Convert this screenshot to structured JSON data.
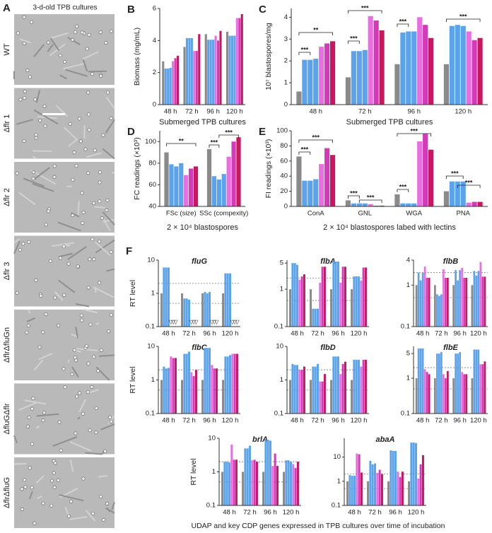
{
  "panel_a": {
    "letter": "A",
    "title": "3-d-old TPB cultures",
    "strains": [
      "WT",
      "Δflr 1",
      "Δflr 2",
      "Δflr 3",
      "ΔflrΔfluGn",
      "ΔfluGΔflr",
      "ΔflrΔfluG"
    ]
  },
  "caption": "UDAP and key CDP genes expressed in TPB cultures over time of incubation",
  "chart_data": [
    {
      "type": "bar",
      "panel": "B",
      "ylabel": "Biomass (mg/mL)",
      "xlabel": "Submerged TPB cultures",
      "categories": [
        "48 h",
        "72 h",
        "96 h",
        "120 h"
      ],
      "ylim": [
        0,
        6
      ],
      "yticks": [
        0,
        2,
        4,
        6
      ],
      "series": [
        {
          "color": "#8a8a8a",
          "values": [
            2.7,
            3.6,
            4.4,
            4.55
          ]
        },
        {
          "color": "#5ba3ec",
          "values": [
            2.25,
            4.15,
            4.05,
            4.3
          ]
        },
        {
          "color": "#5ba3ec",
          "values": [
            2.25,
            4.15,
            4.05,
            4.3
          ]
        },
        {
          "color": "#5ba3ec",
          "values": [
            2.3,
            4.15,
            4.05,
            4.3
          ]
        },
        {
          "color": "#ea6ee0",
          "values": [
            2.7,
            3.35,
            4.3,
            5.4
          ]
        },
        {
          "color": "#d23ab8",
          "values": [
            2.9,
            3.35,
            4.0,
            5.4
          ]
        },
        {
          "color": "#c8175e",
          "values": [
            3.05,
            4.4,
            4.6,
            5.65
          ]
        }
      ]
    },
    {
      "type": "bar",
      "panel": "C",
      "ylabel": "10⁷ blastospores/mg",
      "xlabel": "Submerged TPB cultures",
      "categories": [
        "48 h",
        "72 h",
        "96 h",
        "120 h"
      ],
      "ylim": [
        0,
        4.4
      ],
      "yticks": [
        0,
        1,
        2,
        3,
        4
      ],
      "annotations": [
        "***",
        "**",
        "***",
        "***",
        "***",
        "***"
      ],
      "series": [
        {
          "color": "#8a8a8a",
          "values": [
            0.6,
            1.25,
            1.85,
            1.85
          ]
        },
        {
          "color": "#5ba3ec",
          "values": [
            2.05,
            2.45,
            3.3,
            3.6
          ]
        },
        {
          "color": "#5ba3ec",
          "values": [
            2.05,
            2.45,
            3.35,
            3.65
          ]
        },
        {
          "color": "#5ba3ec",
          "values": [
            2.1,
            2.5,
            3.35,
            3.6
          ]
        },
        {
          "color": "#ea6ee0",
          "values": [
            2.65,
            4.05,
            4.0,
            3.35
          ]
        },
        {
          "color": "#d23ab8",
          "values": [
            2.8,
            3.85,
            3.65,
            2.95
          ]
        },
        {
          "color": "#c8175e",
          "values": [
            2.9,
            3.4,
            3.05,
            3.05
          ]
        }
      ]
    },
    {
      "type": "bar",
      "panel": "D",
      "ylabel": "FC readings (×10³)",
      "xlabel": "2 × 10⁴ blastospores",
      "categories": [
        "FSc (size)",
        "SSc (compexity)"
      ],
      "ylim": [
        40,
        110
      ],
      "yticks": [
        40,
        60,
        80,
        100
      ],
      "annotations": [
        "**",
        "***",
        "***"
      ],
      "series": [
        {
          "color": "#8a8a8a",
          "values": [
            90,
            93
          ]
        },
        {
          "color": "#5ba3ec",
          "values": [
            79,
            68
          ]
        },
        {
          "color": "#5ba3ec",
          "values": [
            77,
            65
          ]
        },
        {
          "color": "#5ba3ec",
          "values": [
            80,
            70
          ]
        },
        {
          "color": "#ea6ee0",
          "values": [
            69,
            86
          ]
        },
        {
          "color": "#d23ab8",
          "values": [
            75,
            100
          ]
        },
        {
          "color": "#c8175e",
          "values": [
            77,
            104
          ]
        }
      ]
    },
    {
      "type": "bar",
      "panel": "E",
      "ylabel": "FI readings (×10³)",
      "xlabel": "2 × 10⁴ blastospores labed with lectins",
      "categories": [
        "ConA",
        "GNL",
        "WGA",
        "PNA"
      ],
      "ylim": [
        0,
        100
      ],
      "yticks": [
        0,
        20,
        40,
        60,
        80,
        100
      ],
      "annotations": [
        "***",
        "***",
        "***",
        "***",
        "***",
        "***",
        "***",
        "***"
      ],
      "series": [
        {
          "color": "#8a8a8a",
          "values": [
            66,
            8,
            16,
            20
          ]
        },
        {
          "color": "#5ba3ec",
          "values": [
            34,
            4,
            4,
            33
          ]
        },
        {
          "color": "#5ba3ec",
          "values": [
            34,
            4,
            4,
            33
          ]
        },
        {
          "color": "#5ba3ec",
          "values": [
            36,
            4,
            4,
            33
          ]
        },
        {
          "color": "#ea6ee0",
          "values": [
            56,
            3,
            86,
            5
          ]
        },
        {
          "color": "#d23ab8",
          "values": [
            77,
            1,
            96,
            6
          ]
        },
        {
          "color": "#c8175e",
          "values": [
            68,
            1,
            75,
            6
          ]
        }
      ]
    },
    {
      "type": "bar",
      "panel": "F",
      "title": "fluG",
      "ylabel": "RT level",
      "log_y": true,
      "hlines": [
        0.5,
        2
      ],
      "categories": [
        "48 h",
        "72 h",
        "96 h",
        "120 h"
      ],
      "ylim": [
        0.1,
        10
      ],
      "yticks": [
        0.1,
        1,
        10
      ],
      "series": [
        {
          "color": "#8a8a8a",
          "values": [
            1,
            1,
            1,
            1
          ]
        },
        {
          "color": "#5ba3ec",
          "values": [
            6,
            0.7,
            1.1,
            4
          ]
        },
        {
          "color": "#5ba3ec",
          "values": [
            6,
            0.7,
            1.0,
            4
          ]
        },
        {
          "color": "#5ba3ec",
          "values": [
            6,
            0.65,
            1.1,
            4
          ]
        },
        {
          "color": "#ea6ee0",
          "values": [
            null,
            null,
            null,
            null
          ],
          "value_labels": [
            "▽",
            "▽",
            "▽",
            "▽"
          ]
        },
        {
          "color": "#d23ab8",
          "values": [
            null,
            null,
            null,
            null
          ],
          "value_labels": [
            "▽",
            "▽",
            "▽",
            "▽"
          ]
        },
        {
          "color": "#c8175e",
          "values": [
            null,
            null,
            null,
            null
          ],
          "value_labels": [
            "▽",
            "▽",
            "▽",
            "▽"
          ]
        }
      ]
    },
    {
      "type": "bar",
      "title": "flbA",
      "log_y": true,
      "hlines": [
        0.5,
        2
      ],
      "categories": [
        "48 h",
        "72 h",
        "96 h",
        "120 h"
      ],
      "ylim": [
        0.1,
        6
      ],
      "yticks": [
        0.1,
        1,
        5
      ],
      "series": [
        {
          "color": "#8a8a8a",
          "values": [
            1,
            1,
            1,
            1
          ]
        },
        {
          "color": "#5ba3ec",
          "values": [
            5,
            0.3,
            5.5,
            2.2
          ]
        },
        {
          "color": "#5ba3ec",
          "values": [
            5,
            0.3,
            5.5,
            2.2
          ]
        },
        {
          "color": "#5ba3ec",
          "values": [
            4.5,
            0.3,
            5.5,
            2.2
          ]
        },
        {
          "color": "#ea6ee0",
          "values": [
            1.8,
            1.5,
            1.5,
            1.7
          ]
        },
        {
          "color": "#d23ab8",
          "values": [
            2.2,
            4,
            4,
            3.8
          ]
        },
        {
          "color": "#c8175e",
          "values": [
            2.5,
            4,
            4,
            3.8
          ]
        }
      ]
    },
    {
      "type": "bar",
      "title": "flbB",
      "log_y": true,
      "hlines": [
        0.5,
        2
      ],
      "categories": [
        "48 h",
        "72 h",
        "96 h",
        "120 h"
      ],
      "ylim": [
        0.1,
        4
      ],
      "yticks": [
        0.1,
        1,
        4
      ],
      "series": [
        {
          "color": "#8a8a8a",
          "values": [
            1,
            1,
            1,
            1
          ]
        },
        {
          "color": "#5ba3ec",
          "values": [
            2,
            0.6,
            2.3,
            2.2
          ]
        },
        {
          "color": "#5ba3ec",
          "values": [
            1.3,
            0.55,
            1.3,
            1.7
          ]
        },
        {
          "color": "#5ba3ec",
          "values": [
            2,
            0.6,
            2.3,
            2.2
          ]
        },
        {
          "color": "#ea6ee0",
          "values": [
            2.8,
            2.4,
            2.6,
            3.6
          ]
        },
        {
          "color": "#d23ab8",
          "values": [
            1.5,
            1.5,
            1.5,
            1.6
          ]
        },
        {
          "color": "#c8175e",
          "values": [
            1.5,
            1.5,
            1.5,
            1.6
          ]
        }
      ]
    },
    {
      "type": "bar",
      "title": "flbC",
      "ylabel": "RT level",
      "log_y": true,
      "hlines": [
        0.5,
        2
      ],
      "categories": [
        "48 h",
        "72 h",
        "96 h",
        "120 h"
      ],
      "ylim": [
        0.1,
        10
      ],
      "yticks": [
        0.1,
        1,
        10
      ],
      "series": [
        {
          "color": "#8a8a8a",
          "values": [
            1,
            1,
            1,
            1
          ]
        },
        {
          "color": "#5ba3ec",
          "values": [
            2.5,
            6,
            9,
            5
          ]
        },
        {
          "color": "#5ba3ec",
          "values": [
            2.2,
            6,
            9,
            5
          ]
        },
        {
          "color": "#5ba3ec",
          "values": [
            2.3,
            7,
            9,
            5.5
          ]
        },
        {
          "color": "#ea6ee0",
          "values": [
            5,
            1.7,
            2.8,
            6
          ]
        },
        {
          "color": "#d23ab8",
          "values": [
            4.5,
            1.3,
            2.2,
            6
          ]
        },
        {
          "color": "#c8175e",
          "values": [
            4.5,
            2,
            2.2,
            6
          ]
        }
      ]
    },
    {
      "type": "bar",
      "title": "flbD",
      "log_y": true,
      "hlines": [
        0.5,
        2
      ],
      "categories": [
        "48 h",
        "72 h",
        "96 h",
        "120 h"
      ],
      "ylim": [
        0.1,
        10
      ],
      "yticks": [
        0.1,
        1,
        10
      ],
      "series": [
        {
          "color": "#8a8a8a",
          "values": [
            1,
            1,
            1,
            1
          ]
        },
        {
          "color": "#5ba3ec",
          "values": [
            3,
            2.5,
            5,
            4
          ]
        },
        {
          "color": "#5ba3ec",
          "values": [
            2.8,
            2.5,
            5,
            4
          ]
        },
        {
          "color": "#5ba3ec",
          "values": [
            2.8,
            3,
            5,
            4
          ]
        },
        {
          "color": "#ea6ee0",
          "values": [
            2,
            0.9,
            1.5,
            2.5
          ]
        },
        {
          "color": "#d23ab8",
          "values": [
            2,
            0.9,
            3,
            4
          ]
        },
        {
          "color": "#c8175e",
          "values": [
            2.5,
            1.5,
            3.5,
            4
          ]
        }
      ]
    },
    {
      "type": "bar",
      "title": "flbE",
      "log_y": true,
      "hlines": [
        0.5,
        2
      ],
      "categories": [
        "48 h",
        "72 h",
        "96 h",
        "120 h"
      ],
      "ylim": [
        0.1,
        8
      ],
      "yticks": [
        0.1,
        1,
        5
      ],
      "series": [
        {
          "color": "#8a8a8a",
          "values": [
            1,
            1,
            1,
            1
          ]
        },
        {
          "color": "#5ba3ec",
          "values": [
            7,
            5,
            5,
            6.5
          ]
        },
        {
          "color": "#5ba3ec",
          "values": [
            7,
            5,
            5,
            6.5
          ]
        },
        {
          "color": "#5ba3ec",
          "values": [
            7,
            5.5,
            5.5,
            6.5
          ]
        },
        {
          "color": "#ea6ee0",
          "values": [
            1.8,
            1.3,
            1.5,
            2.5
          ]
        },
        {
          "color": "#d23ab8",
          "values": [
            1.5,
            1,
            1.3,
            2.5
          ]
        },
        {
          "color": "#c8175e",
          "values": [
            1.3,
            1.6,
            1.3,
            3
          ]
        }
      ]
    },
    {
      "type": "bar",
      "title": "brlA",
      "ylabel": "RT level",
      "log_y": true,
      "hlines": [
        0.5,
        2
      ],
      "categories": [
        "48 h",
        "72 h",
        "96 h",
        "120 h"
      ],
      "ylim": [
        0.1,
        10
      ],
      "yticks": [
        0.1,
        1,
        10
      ],
      "series": [
        {
          "color": "#8a8a8a",
          "values": [
            1,
            1,
            1,
            1
          ]
        },
        {
          "color": "#5ba3ec",
          "values": [
            2,
            5,
            9,
            2.2
          ]
        },
        {
          "color": "#5ba3ec",
          "values": [
            2,
            5,
            9,
            2.2
          ]
        },
        {
          "color": "#5ba3ec",
          "values": [
            1.9,
            6,
            8.5,
            2
          ]
        },
        {
          "color": "#ea6ee0",
          "values": [
            6.5,
            2.2,
            1.5,
            1.7
          ]
        },
        {
          "color": "#d23ab8",
          "values": [
            2.3,
            2.3,
            3.5,
            1.3
          ]
        },
        {
          "color": "#c8175e",
          "values": [
            2.3,
            2,
            1.5,
            2
          ]
        }
      ]
    },
    {
      "type": "bar",
      "title": "abaA",
      "log_y": true,
      "hlines": [
        0.5,
        2
      ],
      "categories": [
        "48 h",
        "72 h",
        "96 h",
        "120 h"
      ],
      "ylim": [
        0.1,
        60
      ],
      "yticks": [
        0.1,
        1,
        10
      ],
      "series": [
        {
          "color": "#8a8a8a",
          "values": [
            1,
            1,
            1,
            1
          ]
        },
        {
          "color": "#5ba3ec",
          "values": [
            1.8,
            7,
            19,
            40
          ]
        },
        {
          "color": "#5ba3ec",
          "values": [
            1.7,
            5,
            18,
            40
          ]
        },
        {
          "color": "#5ba3ec",
          "values": [
            1.7,
            5.5,
            18,
            38
          ]
        },
        {
          "color": "#ea6ee0",
          "values": [
            14,
            2.2,
            2.5,
            1.3
          ]
        },
        {
          "color": "#d23ab8",
          "values": [
            13,
            3,
            1.5,
            5
          ]
        },
        {
          "color": "#c8175e",
          "values": [
            2.3,
            2,
            2.5,
            12
          ]
        }
      ]
    }
  ]
}
